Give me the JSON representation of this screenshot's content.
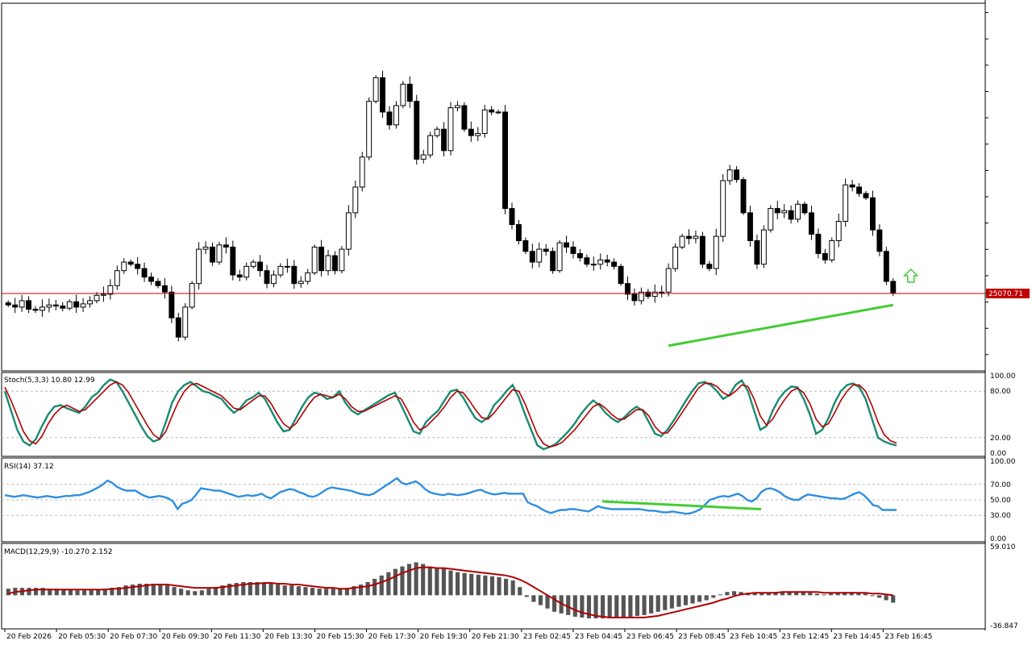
{
  "chart_data": [
    {
      "type": "candlestick",
      "panel": "main",
      "ylim": [
        25000,
        25340
      ],
      "price_ticks": [
        "25332.80",
        "25308.25",
        "25283.70",
        "25259.15",
        "25234.60",
        "25210.05",
        "25185.50",
        "25160.95",
        "25136.40",
        "25111.85",
        "25087.30",
        "25062.75",
        "25038.20",
        "25013.65"
      ],
      "current_price_label": "25070.71",
      "current_price": 25070.71,
      "x_labels": [
        "20 Feb 2026",
        "20 Feb 05:30",
        "20 Feb 07:30",
        "20 Feb 09:30",
        "20 Feb 11:30",
        "20 Feb 13:30",
        "20 Feb 15:30",
        "20 Feb 17:30",
        "20 Feb 19:30",
        "20 Feb 21:30",
        "23 Feb 02:45",
        "23 Feb 04:45",
        "23 Feb 06:45",
        "23 Feb 08:45",
        "23 Feb 10:45",
        "23 Feb 12:45",
        "23 Feb 14:45",
        "23 Feb 16:45"
      ],
      "close": [
        25060,
        25058,
        25064,
        25056,
        25055,
        25058,
        25060,
        25059,
        25057,
        25063,
        25058,
        25061,
        25064,
        25069,
        25070,
        25078,
        25092,
        25100,
        25098,
        25094,
        25086,
        25082,
        25078,
        25072,
        25048,
        25030,
        25058,
        25080,
        25112,
        25114,
        25100,
        25116,
        25114,
        25088,
        25086,
        25096,
        25100,
        25092,
        25080,
        25088,
        25096,
        25096,
        25080,
        25082,
        25090,
        25114,
        25092,
        25106,
        25092,
        25112,
        25146,
        25170,
        25198,
        25250,
        25272,
        25240,
        25228,
        25246,
        25266,
        25250,
        25196,
        25200,
        25218,
        25224,
        25204,
        25244,
        25246,
        25224,
        25218,
        25220,
        25242,
        25240,
        25240,
        25150,
        25135,
        25120,
        25110,
        25100,
        25112,
        25110,
        25092,
        25118,
        25114,
        25108,
        25104,
        25098,
        25098,
        25102,
        25100,
        25096,
        25080,
        25070,
        25064,
        25072,
        25068,
        25072,
        25072,
        25094,
        25114,
        25124,
        25122,
        25124,
        25098,
        25094,
        25124,
        25176,
        25186,
        25177,
        25146,
        25120,
        25098,
        25130,
        25150,
        25146,
        25148,
        25140,
        25154,
        25146,
        25126,
        25108,
        25102,
        25120,
        25138,
        25172,
        25170,
        25164,
        25160,
        25130,
        25110,
        25082,
        25070.71
      ],
      "trendline": {
        "from_index": 97,
        "to_index": 130,
        "from_price": 25022,
        "to_price": 25060
      },
      "signal": "up-arrow"
    },
    {
      "type": "line",
      "panel": "stochastic",
      "title": "Stoch(5,3,3) 10.80 12.99",
      "ylim": [
        0,
        100
      ],
      "levels": [
        20,
        80
      ],
      "ticks": [
        "100.00",
        "80.00",
        "20.00",
        "0.00"
      ],
      "series": [
        {
          "color": "#1a8a72",
          "values": [
            80,
            55,
            30,
            15,
            10,
            18,
            35,
            50,
            60,
            62,
            58,
            55,
            52,
            60,
            72,
            78,
            88,
            95,
            92,
            80,
            65,
            50,
            35,
            22,
            15,
            18,
            40,
            65,
            80,
            88,
            92,
            86,
            80,
            78,
            74,
            70,
            60,
            52,
            58,
            68,
            72,
            78,
            70,
            55,
            40,
            28,
            30,
            45,
            60,
            72,
            78,
            76,
            70,
            72,
            80,
            65,
            55,
            50,
            55,
            60,
            65,
            70,
            75,
            78,
            62,
            45,
            28,
            25,
            40,
            48,
            55,
            68,
            80,
            82,
            72,
            58,
            45,
            40,
            46,
            62,
            70,
            80,
            88,
            72,
            50,
            30,
            10,
            5,
            8,
            12,
            20,
            28,
            38,
            50,
            60,
            68,
            62,
            52,
            45,
            40,
            46,
            54,
            60,
            55,
            40,
            25,
            22,
            30,
            42,
            55,
            68,
            80,
            90,
            92,
            88,
            80,
            70,
            75,
            88,
            94,
            80,
            55,
            30,
            35,
            55,
            70,
            80,
            86,
            85,
            70,
            50,
            25,
            30,
            45,
            65,
            80,
            88,
            90,
            85,
            70,
            45,
            20,
            15,
            12,
            10
          ]
        },
        {
          "color": "#b00000",
          "values": [
            85,
            68,
            48,
            28,
            16,
            12,
            22,
            38,
            50,
            58,
            62,
            58,
            54,
            56,
            64,
            72,
            80,
            88,
            92,
            88,
            78,
            64,
            50,
            36,
            24,
            18,
            28,
            48,
            66,
            80,
            88,
            90,
            86,
            82,
            78,
            74,
            66,
            58,
            56,
            62,
            68,
            74,
            74,
            64,
            50,
            38,
            32,
            38,
            50,
            62,
            72,
            76,
            74,
            72,
            76,
            70,
            60,
            54,
            54,
            58,
            62,
            66,
            70,
            74,
            70,
            56,
            40,
            30,
            34,
            42,
            50,
            60,
            72,
            80,
            78,
            68,
            56,
            46,
            44,
            52,
            62,
            72,
            82,
            80,
            64,
            44,
            24,
            12,
            8,
            10,
            14,
            22,
            30,
            40,
            50,
            60,
            64,
            58,
            50,
            44,
            44,
            50,
            56,
            56,
            48,
            34,
            26,
            26,
            36,
            48,
            60,
            72,
            84,
            90,
            90,
            86,
            78,
            74,
            80,
            88,
            86,
            70,
            48,
            36,
            44,
            58,
            70,
            80,
            84,
            78,
            64,
            44,
            34,
            38,
            52,
            68,
            80,
            88,
            88,
            80,
            62,
            40,
            24,
            16,
            13
          ]
        }
      ]
    },
    {
      "type": "line",
      "panel": "rsi",
      "title": "RSI(14) 37.12",
      "ylim": [
        0,
        100
      ],
      "levels": [
        30,
        50,
        70
      ],
      "ticks": [
        "100.00",
        "70.00",
        "50.00",
        "30.00",
        "0.00"
      ],
      "series": [
        {
          "color": "#2f8fe0",
          "values": [
            56,
            55,
            54,
            55,
            56,
            55,
            54,
            53,
            54,
            55,
            54,
            53,
            54,
            55,
            55,
            56,
            56,
            58,
            60,
            63,
            66,
            70,
            75,
            72,
            67,
            64,
            62,
            62,
            62,
            58,
            55,
            53,
            54,
            55,
            54,
            52,
            48,
            38,
            45,
            47,
            50,
            57,
            65,
            64,
            63,
            62,
            62,
            60,
            58,
            56,
            54,
            55,
            56,
            55,
            56,
            58,
            54,
            52,
            56,
            60,
            62,
            64,
            63,
            60,
            58,
            55,
            54,
            56,
            60,
            64,
            66,
            65,
            64,
            63,
            62,
            60,
            58,
            57,
            56,
            58,
            62,
            66,
            70,
            74,
            78,
            72,
            70,
            72,
            74,
            70,
            64,
            60,
            58,
            57,
            56,
            58,
            57,
            56,
            57,
            58,
            60,
            62,
            63,
            60,
            58,
            57,
            58,
            59,
            58,
            58,
            58,
            58,
            47,
            44,
            42,
            38,
            35,
            33,
            35,
            37,
            37,
            38,
            38,
            37,
            36,
            35,
            38,
            42,
            40,
            39,
            38,
            38,
            38,
            38,
            38,
            38,
            38,
            37,
            36,
            36,
            35,
            34,
            34,
            35,
            34,
            33,
            32,
            33,
            35,
            38,
            44,
            50,
            52,
            54,
            55,
            54,
            56,
            58,
            55,
            50,
            48,
            52,
            60,
            64,
            65,
            63,
            60,
            55,
            52,
            50,
            50,
            54,
            57,
            56,
            55,
            54,
            53,
            52,
            52,
            51,
            52,
            55,
            58,
            60,
            56,
            50,
            43,
            42,
            37,
            37,
            37,
            37
          ]
        }
      ],
      "trendline": {
        "from_index": 128,
        "to_index": 162,
        "from_value": 48,
        "to_value": 38
      }
    },
    {
      "type": "bar",
      "panel": "macd",
      "title": "MACD(12,29,9) -10.270 2.152",
      "ylim": [
        -36.847,
        59.01
      ],
      "ticks": [
        "59.010",
        "-36.847"
      ],
      "series": [
        {
          "name": "",
          "color": "#555555",
          "values": [
            8,
            9,
            9,
            9,
            9,
            9,
            8,
            8,
            7,
            7,
            6,
            6,
            7,
            7,
            8,
            9,
            10,
            12,
            13,
            14,
            14,
            14,
            13,
            12,
            10,
            8,
            6,
            5,
            6,
            8,
            10,
            12,
            14,
            15,
            16,
            16,
            16,
            15,
            14,
            13,
            12,
            12,
            11,
            10,
            9,
            8,
            8,
            8,
            8,
            9,
            11,
            13,
            16,
            20,
            24,
            28,
            32,
            35,
            38,
            40,
            38,
            35,
            33,
            32,
            30,
            28,
            27,
            26,
            25,
            24,
            23,
            22,
            20,
            18,
            10,
            -2,
            -8,
            -12,
            -16,
            -20,
            -22,
            -24,
            -26,
            -27,
            -28,
            -28,
            -28,
            -28,
            -28,
            -27,
            -26,
            -25,
            -24,
            -22,
            -20,
            -18,
            -16,
            -14,
            -12,
            -10,
            -8,
            -6,
            -3,
            1,
            4,
            5,
            4,
            3,
            3,
            3,
            3,
            4,
            4,
            4,
            4,
            4,
            3,
            2,
            1,
            2,
            3,
            4,
            4,
            3,
            2,
            0,
            -3,
            -6,
            -9
          ]
        },
        {
          "name": "",
          "color": "#b00000",
          "values": [
            2,
            4,
            5,
            6,
            7,
            7,
            7,
            7,
            7,
            7,
            7,
            7,
            7,
            7,
            7,
            8,
            8,
            9,
            10,
            11,
            12,
            13,
            13,
            13,
            12,
            11,
            10,
            9,
            9,
            9,
            9,
            10,
            11,
            12,
            13,
            14,
            14,
            15,
            15,
            14,
            14,
            13,
            13,
            12,
            11,
            10,
            9,
            9,
            8,
            8,
            9,
            10,
            11,
            13,
            16,
            19,
            23,
            27,
            30,
            33,
            34,
            34,
            33,
            33,
            32,
            31,
            30,
            29,
            28,
            27,
            26,
            25,
            24,
            22,
            19,
            15,
            10,
            5,
            0,
            -5,
            -10,
            -14,
            -18,
            -21,
            -23,
            -25,
            -26,
            -27,
            -27,
            -27,
            -27,
            -27,
            -27,
            -26,
            -25,
            -23,
            -21,
            -19,
            -17,
            -15,
            -13,
            -11,
            -9,
            -6,
            -4,
            -1,
            1,
            2,
            3,
            3,
            3,
            3,
            4,
            4,
            4,
            4,
            4,
            4,
            3,
            3,
            3,
            3,
            3,
            3,
            3,
            2,
            2,
            1,
            0
          ]
        }
      ]
    }
  ]
}
